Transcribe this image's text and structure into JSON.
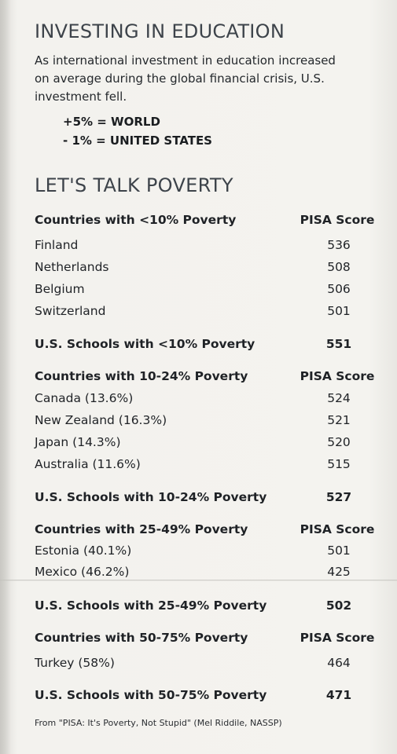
{
  "investing": {
    "title": "INVESTING IN EDUCATION",
    "intro_lines": [
      "As international investment in education increased",
      "on average during the global financial crisis, U.S.",
      "investment fell."
    ],
    "stat_world": "+5% = WORLD",
    "stat_us": "- 1% = UNITED STATES"
  },
  "poverty": {
    "title": "LET'S TALK POVERTY",
    "groups": [
      {
        "header": "Countries with <10% Poverty",
        "score_header": "PISA Score",
        "rows": [
          {
            "name": "Finland",
            "score": "536"
          },
          {
            "name": "Netherlands",
            "score": "508"
          },
          {
            "name": "Belgium",
            "score": "506"
          },
          {
            "name": "Switzerland",
            "score": "501"
          }
        ],
        "us_label": "U.S. Schools with <10% Poverty",
        "us_score": "551"
      },
      {
        "header": "Countries with 10-24% Poverty",
        "score_header": "PISA Score",
        "rows": [
          {
            "name": "Canada (13.6%)",
            "score": "524"
          },
          {
            "name": "New Zealand (16.3%)",
            "score": "521"
          },
          {
            "name": "Japan (14.3%)",
            "score": "520"
          },
          {
            "name": "Australia (11.6%)",
            "score": "515"
          }
        ],
        "us_label": "U.S. Schools with 10-24% Poverty",
        "us_score": "527"
      },
      {
        "header": "Countries with 25-49% Poverty",
        "score_header": "PISA Score",
        "rows": [
          {
            "name": "Estonia (40.1%)",
            "score": "501"
          },
          {
            "name": "Mexico (46.2%)",
            "score": "425"
          }
        ],
        "us_label": "U.S. Schools with 25-49% Poverty",
        "us_score": "502"
      },
      {
        "header": "Countries with 50-75% Poverty",
        "score_header": "PISA Score",
        "rows": [
          {
            "name": "Turkey (58%)",
            "score": "464"
          }
        ],
        "us_label": "U.S. Schools with 50-75% Poverty",
        "us_score": "471"
      }
    ]
  },
  "source": "From \"PISA: It's Poverty, Not Stupid\" (Mel Riddile, NASSP)"
}
